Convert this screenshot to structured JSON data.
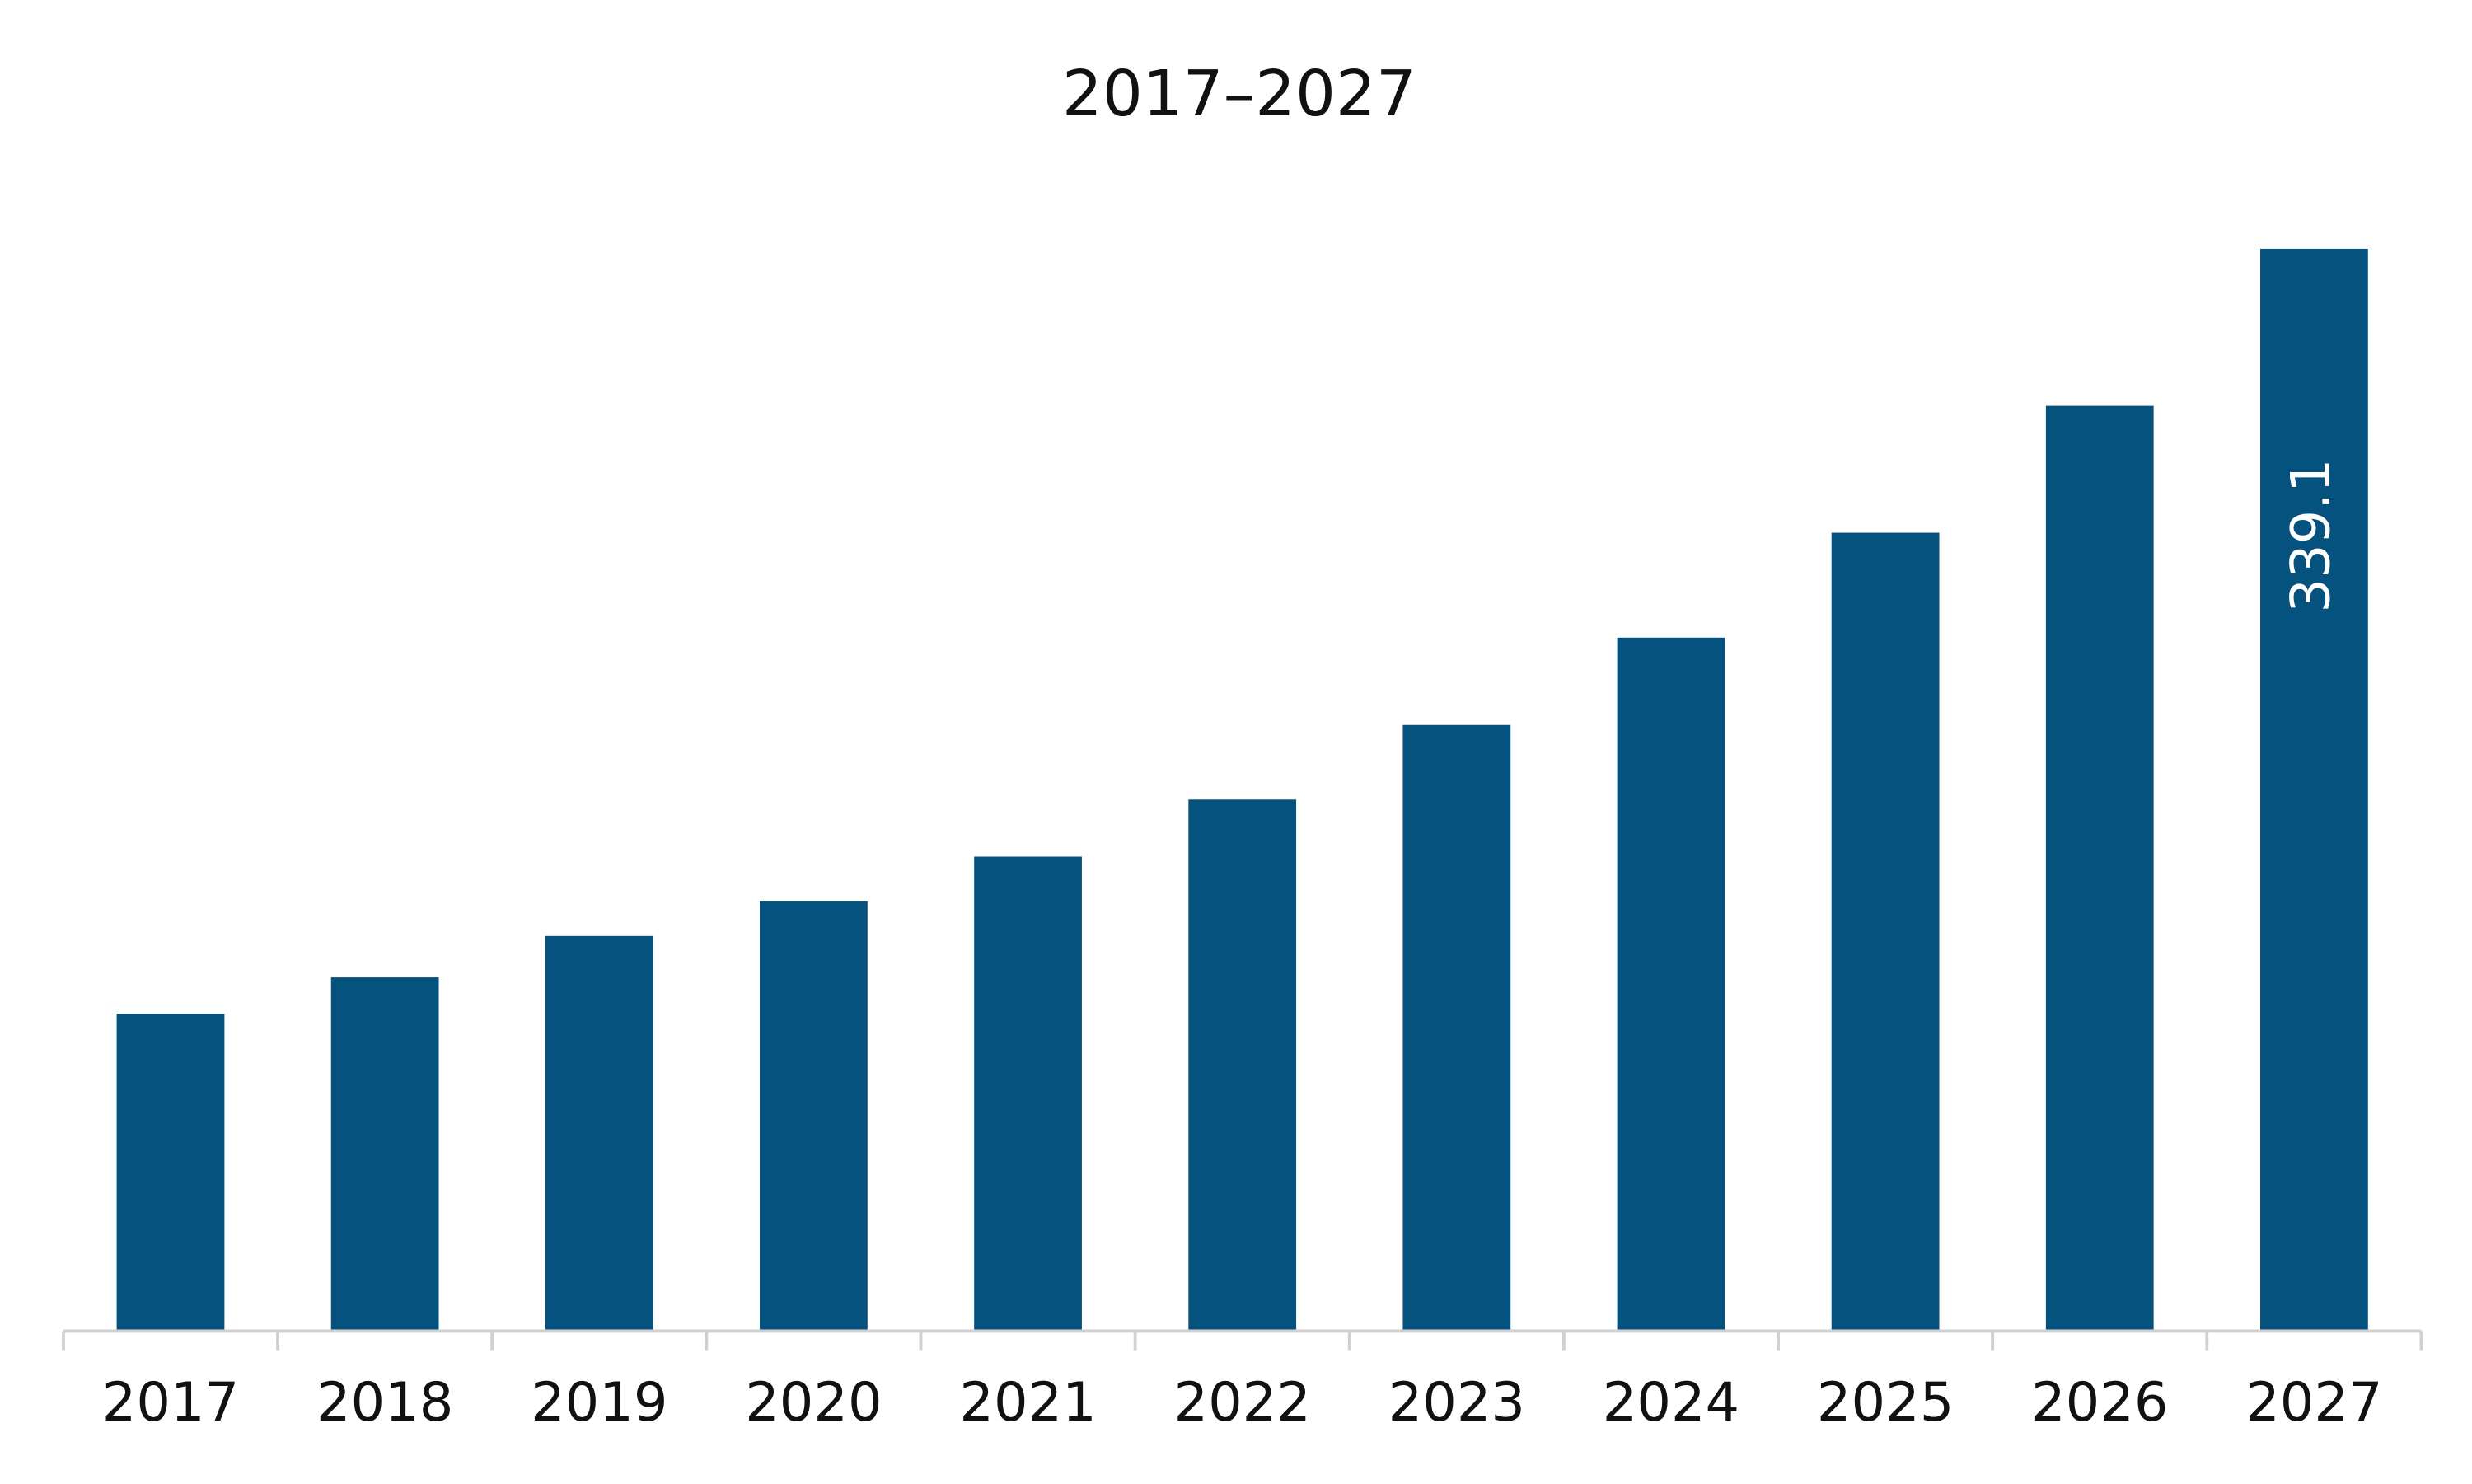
{
  "chart_data": {
    "type": "bar",
    "title": "2017–2027",
    "categories": [
      "2017",
      "2018",
      "2019",
      "2020",
      "2021",
      "2022",
      "2023",
      "2024",
      "2025",
      "2026",
      "2027"
    ],
    "values": [
      99.1,
      110.5,
      123.5,
      134.4,
      148.4,
      166.3,
      189.7,
      217.1,
      250.0,
      289.8,
      339.1
    ],
    "value_labels": [
      null,
      null,
      null,
      null,
      null,
      null,
      null,
      null,
      null,
      null,
      "339.1"
    ],
    "color": "#06527e"
  }
}
